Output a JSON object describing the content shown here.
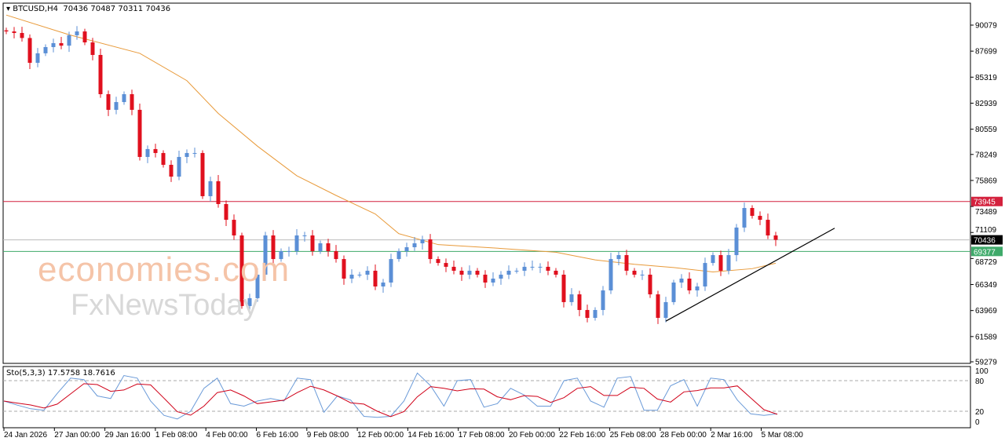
{
  "header": {
    "symbol": "BTCUSD,H4",
    "ohlc": "70436 70487 70311 70436"
  },
  "indicator": {
    "label": "Sto(5,3,3) 17.5758 18.7616"
  },
  "watermark": {
    "line1": "economies.com",
    "line2": "FxNewsToday"
  },
  "colors": {
    "bull": "#5b8fd6",
    "bear": "#e0101e",
    "ma": "#e89a3a",
    "resistance": "#d4213d",
    "support": "#3faa6a",
    "current": "#bbbbbb",
    "k": "#6a9ad8",
    "d": "#d00018"
  },
  "chart_data": {
    "type": "candlestick",
    "symbol": "BTCUSD",
    "timeframe": "H4",
    "ylim": [
      59279,
      91400
    ],
    "y_ticks": [
      90079,
      87699,
      85319,
      82939,
      80559,
      78249,
      75869,
      73489,
      71109,
      68729,
      66349,
      63969,
      61589,
      59279
    ],
    "x_ticks": [
      "24 Jan 2026",
      "27 Jan 00:00",
      "29 Jan 16:00",
      "1 Feb 08:00",
      "4 Feb 00:00",
      "6 Feb 16:00",
      "9 Feb 08:00",
      "12 Feb 00:00",
      "14 Feb 16:00",
      "17 Feb 08:00",
      "20 Feb 00:00",
      "22 Feb 16:00",
      "25 Feb 08:00",
      "28 Feb 00:00",
      "2 Mar 16:00",
      "5 Mar 08:00"
    ],
    "closes": [
      89500,
      89360,
      88900,
      86630,
      87500,
      88070,
      88430,
      88200,
      89150,
      89500,
      88500,
      87350,
      83760,
      82330,
      83040,
      83760,
      82330,
      78020,
      78740,
      78380,
      77300,
      76220,
      78020,
      78380,
      78380,
      74430,
      75800,
      73710,
      72270,
      70840,
      64380,
      65100,
      67250,
      70840,
      68680,
      69400,
      69400,
      70840,
      70840,
      69400,
      70120,
      69400,
      68680,
      66890,
      67250,
      67250,
      67610,
      66170,
      66530,
      68680,
      69400,
      69760,
      70120,
      70480,
      68680,
      68320,
      67970,
      67610,
      67250,
      67610,
      67250,
      66530,
      66890,
      67250,
      67610,
      67610,
      67970,
      67970,
      67970,
      67610,
      67250,
      64740,
      65450,
      64020,
      63300,
      64020,
      65810,
      68680,
      69040,
      67610,
      67250,
      67250,
      65450,
      63300,
      64740,
      66530,
      66890,
      65810,
      66170,
      68320,
      69040,
      67610,
      69040,
      71560,
      73350,
      72630,
      72270,
      70840,
      70436
    ],
    "ma": [
      [
        0,
        91000
      ],
      [
        8,
        89200
      ],
      [
        17,
        87500
      ],
      [
        23,
        85000
      ],
      [
        27,
        82000
      ],
      [
        32,
        79000
      ],
      [
        37,
        76300
      ],
      [
        42,
        74500
      ],
      [
        47,
        72800
      ],
      [
        50,
        71000
      ],
      [
        55,
        70000
      ],
      [
        62,
        69700
      ],
      [
        70,
        69300
      ],
      [
        75,
        68600
      ],
      [
        80,
        68200
      ],
      [
        85,
        67900
      ],
      [
        90,
        67500
      ],
      [
        95,
        67800
      ],
      [
        98,
        68300
      ]
    ],
    "levels": [
      {
        "name": "resistance",
        "value": 73945
      },
      {
        "name": "current",
        "value": 70436
      },
      {
        "name": "support",
        "value": 69377
      }
    ],
    "trendline": {
      "from": [
        84,
        63000
      ],
      "to": [
        105.5,
        71500
      ]
    },
    "stochastic": {
      "levels": [
        100,
        80,
        20,
        0
      ],
      "k": [
        40,
        32,
        25,
        22,
        55,
        85,
        82,
        50,
        45,
        90,
        85,
        40,
        12,
        5,
        20,
        65,
        85,
        35,
        30,
        40,
        45,
        40,
        85,
        82,
        18,
        50,
        42,
        10,
        8,
        10,
        40,
        95,
        70,
        30,
        80,
        82,
        28,
        35,
        65,
        52,
        30,
        30,
        80,
        85,
        40,
        28,
        85,
        88,
        22,
        22,
        70,
        82,
        30,
        85,
        82,
        42,
        15,
        12,
        15
      ]
    }
  }
}
